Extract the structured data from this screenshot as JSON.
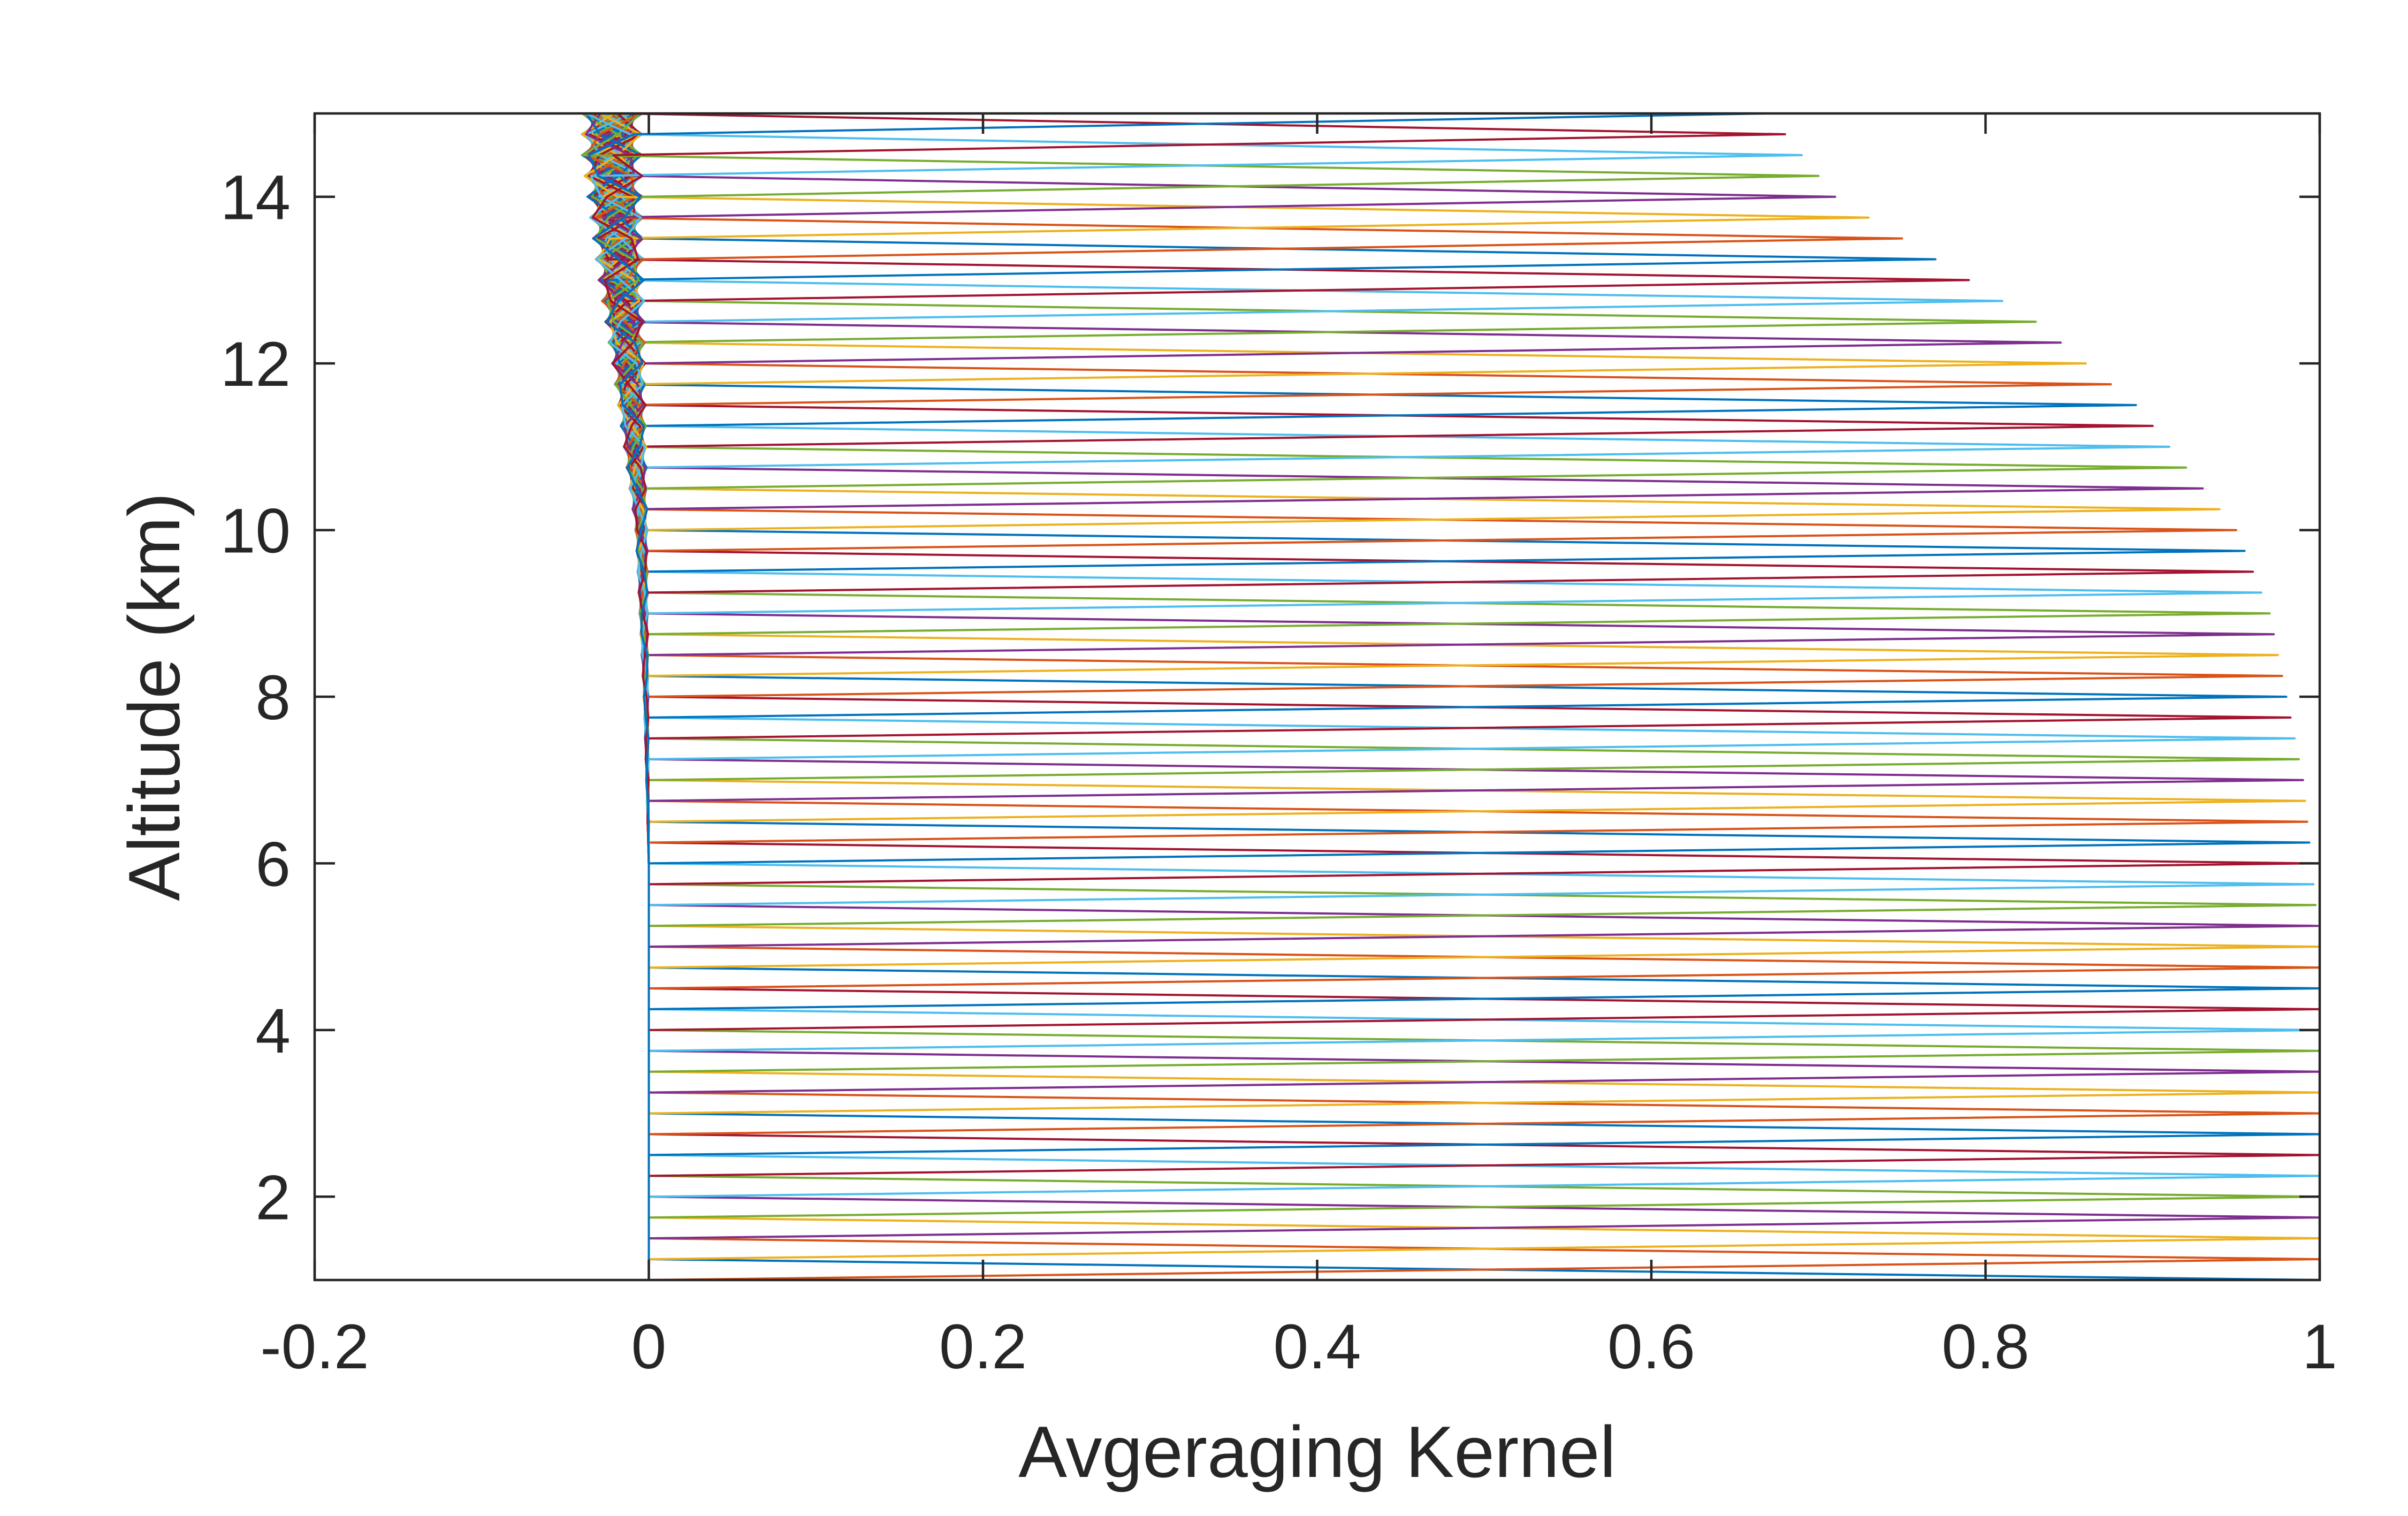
{
  "chart_data": {
    "type": "line",
    "title": "",
    "xlabel": "Avgeraging Kernel",
    "ylabel": "Altitude (km)",
    "xlim": [
      -0.2,
      1
    ],
    "ylim": [
      1,
      15
    ],
    "x_ticks": [
      -0.2,
      0,
      0.2,
      0.4,
      0.6,
      0.8,
      1
    ],
    "x_tick_labels": [
      "-0.2",
      "0",
      "0.2",
      "0.4",
      "0.6",
      "0.8",
      "1"
    ],
    "y_ticks": [
      2,
      4,
      6,
      8,
      10,
      12,
      14
    ],
    "y_tick_labels": [
      "2",
      "4",
      "6",
      "8",
      "10",
      "12",
      "14"
    ],
    "grid": false,
    "box": true,
    "altitude_levels_km": [
      1,
      1.25,
      1.5,
      1.75,
      2,
      2.25,
      2.5,
      2.75,
      3,
      3.25,
      3.5,
      3.75,
      4,
      4.25,
      4.5,
      4.75,
      5,
      5.25,
      5.5,
      5.75,
      6,
      6.25,
      6.5,
      6.75,
      7,
      7.25,
      7.5,
      7.75,
      8,
      8.25,
      8.5,
      8.75,
      9,
      9.25,
      9.5,
      9.75,
      10,
      10.25,
      10.5,
      10.75,
      11,
      11.25,
      11.5,
      11.75,
      12,
      12.25,
      12.5,
      12.75,
      13,
      13.25,
      13.5,
      13.75,
      14,
      14.25,
      14.5,
      14.75,
      15
    ],
    "diagonal_envelope": {
      "x": [
        1,
        1,
        1,
        0.995,
        0.99,
        0.98,
        0.97,
        0.95,
        0.93,
        0.91,
        0.89,
        0.86,
        0.83,
        0.79,
        0.75,
        0.71,
        0.67
      ],
      "y": [
        1,
        3,
        5,
        6,
        7,
        8,
        9,
        10,
        10.5,
        11,
        11.5,
        12,
        12.5,
        13,
        13.5,
        14,
        15
      ]
    },
    "offdiag_amplitude_by_altitude": {
      "x": [
        0.0,
        0.0,
        0.003,
        0.008,
        0.015,
        0.022,
        0.03,
        0.04
      ],
      "y": [
        1,
        6,
        8,
        10,
        11,
        12,
        13,
        14.5
      ]
    },
    "series_colors": [
      "#0072BD",
      "#D95319",
      "#EDB120",
      "#7E2F8E",
      "#77AC30",
      "#4DBEEE",
      "#A2142F"
    ]
  }
}
